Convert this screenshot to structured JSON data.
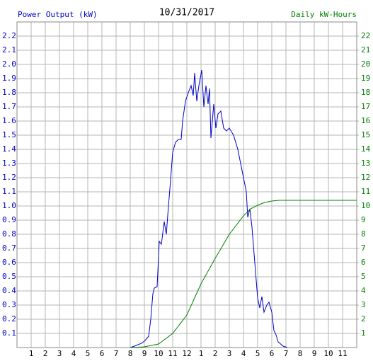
{
  "chart_data": {
    "type": "line",
    "title": "10/31/2017",
    "xlim": [
      0,
      24
    ],
    "xticks": [
      1,
      2,
      3,
      4,
      5,
      6,
      7,
      8,
      9,
      10,
      11,
      12,
      {
        "value": 13,
        "label": "1"
      },
      {
        "value": 14,
        "label": "2"
      },
      {
        "value": 15,
        "label": "3"
      },
      {
        "value": 16,
        "label": "4"
      },
      {
        "value": 17,
        "label": "5"
      },
      {
        "value": 18,
        "label": "6"
      },
      {
        "value": 19,
        "label": "7"
      },
      {
        "value": 20,
        "label": "8"
      },
      {
        "value": 21,
        "label": "9"
      },
      {
        "value": 22,
        "label": "10"
      },
      {
        "value": 23,
        "label": "11"
      }
    ],
    "ylim": [
      0,
      2.3
    ],
    "yticks": [
      0.1,
      0.2,
      0.3,
      0.4,
      0.5,
      0.6,
      0.7,
      0.8,
      0.9,
      {
        "value": 1,
        "label": "1.0"
      },
      1.1,
      1.2,
      1.3,
      1.4,
      1.5,
      1.6,
      1.7,
      1.8,
      1.9,
      {
        "value": 2,
        "label": "2.0"
      },
      2.1,
      2.2
    ],
    "y2lim": [
      0,
      23
    ],
    "y2ticks": [
      1,
      2,
      3,
      4,
      5,
      6,
      7,
      8,
      9,
      10,
      11,
      12,
      13,
      14,
      15,
      16,
      17,
      18,
      19,
      20,
      21,
      22
    ],
    "grid": true,
    "series": [
      {
        "name": "Power Output (kW)",
        "color": "#0000c8",
        "x": [
          8.0,
          8.3,
          8.8,
          9.05,
          9.3,
          9.45,
          9.6,
          9.7,
          9.9,
          10.05,
          10.2,
          10.4,
          10.55,
          10.7,
          10.8,
          11.0,
          11.2,
          11.4,
          11.6,
          11.7,
          11.9,
          12.1,
          12.3,
          12.45,
          12.55,
          12.7,
          12.85,
          13.05,
          13.2,
          13.35,
          13.5,
          13.6,
          13.7,
          13.8,
          13.9,
          14.05,
          14.2,
          14.4,
          14.6,
          14.8,
          15.0,
          15.3,
          15.6,
          15.8,
          16.0,
          16.2,
          16.3,
          16.45,
          16.6,
          16.8,
          17.0,
          17.15,
          17.3,
          17.45,
          17.65,
          17.8,
          18.0,
          18.15,
          18.3,
          18.45,
          18.8,
          19.1
        ],
        "values": [
          0,
          0.01,
          0.03,
          0.05,
          0.08,
          0.2,
          0.38,
          0.42,
          0.43,
          0.75,
          0.73,
          0.89,
          0.8,
          1.0,
          1.12,
          1.38,
          1.45,
          1.47,
          1.47,
          1.6,
          1.74,
          1.8,
          1.85,
          1.78,
          1.94,
          1.74,
          1.85,
          1.96,
          1.7,
          1.85,
          1.72,
          1.83,
          1.48,
          1.6,
          1.72,
          1.55,
          1.65,
          1.67,
          1.55,
          1.53,
          1.55,
          1.5,
          1.4,
          1.3,
          1.2,
          1.1,
          0.92,
          0.98,
          0.85,
          0.6,
          0.35,
          0.28,
          0.36,
          0.25,
          0.3,
          0.32,
          0.25,
          0.12,
          0.09,
          0.04,
          0.01,
          0
        ]
      },
      {
        "name": "Daily kW-Hours",
        "color": "#008000",
        "axis": "y2",
        "x": [
          8.0,
          9.0,
          10.0,
          11.0,
          12.0,
          13.0,
          14.0,
          15.0,
          16.0,
          16.5,
          17.0,
          17.5,
          18.0,
          18.5,
          24.0
        ],
        "values": [
          0,
          0.05,
          0.25,
          1.0,
          2.3,
          4.5,
          6.3,
          8.0,
          9.3,
          9.8,
          10.05,
          10.25,
          10.35,
          10.4,
          10.4
        ]
      }
    ]
  }
}
